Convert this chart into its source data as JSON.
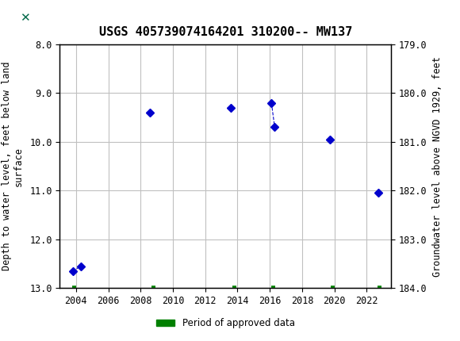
{
  "title": "USGS 405739074164201 310200-- MW137",
  "ylabel_left": "Depth to water level, feet below land\nsurface",
  "ylabel_right": "Groundwater level above NGVD 1929, feet",
  "xlim": [
    2003,
    2023.5
  ],
  "ylim_left": [
    8.0,
    13.0
  ],
  "ylim_right": [
    179.0,
    184.0
  ],
  "xticks": [
    2004,
    2006,
    2008,
    2010,
    2012,
    2014,
    2016,
    2018,
    2020,
    2022
  ],
  "yticks_left": [
    8.0,
    9.0,
    10.0,
    11.0,
    12.0,
    13.0
  ],
  "yticks_right": [
    179.0,
    180.0,
    181.0,
    182.0,
    183.0,
    184.0
  ],
  "header_color": "#006747",
  "blue_points_x": [
    2003.8,
    2004.3,
    2008.6,
    2013.6,
    2016.1,
    2016.3,
    2019.7,
    2022.7
  ],
  "blue_points_y": [
    12.65,
    12.55,
    9.4,
    9.3,
    9.2,
    9.7,
    9.95,
    11.05
  ],
  "dashed_segments": [
    {
      "x": [
        2003.8,
        2004.3
      ],
      "y": [
        12.65,
        12.55
      ]
    },
    {
      "x": [
        2016.1,
        2016.3
      ],
      "y": [
        9.2,
        9.7
      ]
    }
  ],
  "green_bar_x": [
    2003.9,
    2008.8,
    2013.8,
    2016.2,
    2019.9,
    2022.8
  ],
  "green_bar_y": [
    13.0,
    13.0,
    13.0,
    13.0,
    13.0,
    13.0
  ],
  "point_color": "#0000cc",
  "green_color": "#008000",
  "legend_label": "Period of approved data",
  "background_color": "#ffffff",
  "grid_color": "#c0c0c0"
}
